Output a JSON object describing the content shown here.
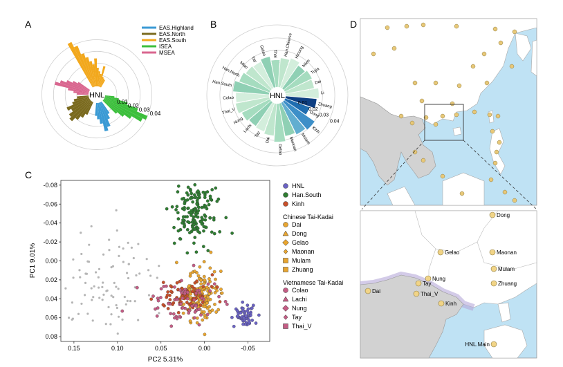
{
  "panels": {
    "a": "A",
    "b": "B",
    "c": "C",
    "d": "D"
  },
  "colors": {
    "EAS.Highland": "#3a9ad4",
    "EAS.North": "#7a6a1e",
    "EAS.South": "#f2a81d",
    "ISEA": "#3cbf3c",
    "MSEA": "#d9668f",
    "HNL": "#6b63c4",
    "Han.South": "#2f7d32",
    "Kinh": "#c8502a",
    "Chinese": "#e8a530",
    "Vietnamese": "#c45d85",
    "ref": "#b5b5b5",
    "sea": "#bfe2f4",
    "land": "#ffffff",
    "mainland_gray": "#d2d2d2"
  },
  "chart_data": [
    {
      "type": "bar",
      "panel": "A",
      "subtype": "radial",
      "center_label": "HNL",
      "radial_ticks": [
        "0.01",
        "0.02",
        "0.03",
        "0.04"
      ],
      "legend": [
        "EAS.Highland",
        "EAS.North",
        "EAS.South",
        "ISEA",
        "MSEA"
      ],
      "rmax": 0.045,
      "series": [
        {
          "name": "EAS.South",
          "values": [
            0.043,
            0.038,
            0.03,
            0.026,
            0.022,
            0.019,
            0.024,
            0.016,
            0.013,
            0.011,
            0.018,
            0.009,
            0.008,
            0.007
          ]
        },
        {
          "name": "ISEA",
          "values": [
            0.008,
            0.012,
            0.02,
            0.03,
            0.04,
            0.037,
            0.028,
            0.022,
            0.016
          ]
        },
        {
          "name": "EAS.Highland",
          "values": [
            0.012,
            0.016,
            0.022,
            0.025,
            0.018,
            0.014,
            0.011
          ]
        },
        {
          "name": "EAS.North",
          "values": [
            0.012,
            0.016,
            0.02,
            0.024,
            0.022,
            0.018,
            0.021,
            0.015,
            0.013,
            0.01
          ]
        },
        {
          "name": "MSEA",
          "values": [
            0.01,
            0.013,
            0.018,
            0.03,
            0.026,
            0.021,
            0.016,
            0.012
          ]
        }
      ]
    },
    {
      "type": "bar",
      "panel": "B",
      "subtype": "radial",
      "center_label": "HNL",
      "radial_ticks": [
        "0.01",
        "0.02",
        "0.03",
        "0.04"
      ],
      "rmax": 0.045,
      "categories": [
        "Zhuang",
        "Dong",
        "Kinh",
        "Mulam",
        "Maonan",
        "Gelao",
        "Dai",
        "Tay",
        "Lachi",
        "Nung",
        "Thai_V",
        "Colao",
        "Han.South",
        "Han.North",
        "Miao",
        "Tay",
        "Gelao",
        "Thai",
        "Han.Chinese",
        "Hmong",
        "Mien",
        "Tujia",
        "Dai",
        "Li"
      ],
      "values": [
        0.031,
        0.026,
        0.037,
        0.035,
        0.033,
        0.038,
        0.032,
        0.03,
        0.029,
        0.031,
        0.034,
        0.033,
        0.036,
        0.032,
        0.03,
        0.029,
        0.031,
        0.027,
        0.029,
        0.031,
        0.028,
        0.03,
        0.029,
        0.033
      ]
    },
    {
      "type": "scatter",
      "panel": "C",
      "xlabel": "PC2  5.31%",
      "ylabel": "PC1  9.01%",
      "xticks": [
        "0.15",
        "0.10",
        "0.05",
        "0.00",
        "-0.05"
      ],
      "yticks": [
        "-0.08",
        "-0.06",
        "-0.04",
        "-0.02",
        "0.00",
        "0.02",
        "0.04",
        "0.06",
        "0.08"
      ],
      "xlim": [
        0.165,
        -0.075
      ],
      "ylim": [
        -0.085,
        0.085
      ],
      "legend_groups": [
        {
          "title": "",
          "items": [
            {
              "name": "HNL",
              "marker": "circle",
              "color": "#6b63c4"
            },
            {
              "name": "Han.South",
              "marker": "circle",
              "color": "#2f7d32"
            },
            {
              "name": "Kinh",
              "marker": "circle",
              "color": "#c8502a"
            }
          ]
        },
        {
          "title": "Chinese Tai-Kadai",
          "items": [
            {
              "name": "Dai",
              "marker": "circle",
              "color": "#e8a530"
            },
            {
              "name": "Dong",
              "marker": "triangle",
              "color": "#e8a530"
            },
            {
              "name": "Gelao",
              "marker": "diamond",
              "color": "#e8a530"
            },
            {
              "name": "Maonan",
              "marker": "diamond-small",
              "color": "#e8a530"
            },
            {
              "name": "Mulam",
              "marker": "square",
              "color": "#e8a530"
            },
            {
              "name": "Zhuang",
              "marker": "square-open",
              "color": "#e8a530"
            }
          ]
        },
        {
          "title": "Vietnamese Tai-Kadai",
          "items": [
            {
              "name": "Colao",
              "marker": "circle",
              "color": "#c45d85"
            },
            {
              "name": "Lachi",
              "marker": "triangle",
              "color": "#c45d85"
            },
            {
              "name": "Nung",
              "marker": "diamond",
              "color": "#c45d85"
            },
            {
              "name": "Tay",
              "marker": "diamond-small",
              "color": "#c45d85"
            },
            {
              "name": "Thai_V",
              "marker": "square",
              "color": "#c45d85"
            }
          ]
        }
      ],
      "clusters": [
        {
          "name": "reference",
          "color": "#b5b5b5",
          "cx": 0.11,
          "cy": 0.02,
          "sx": 0.028,
          "sy": 0.028,
          "n": 90
        },
        {
          "name": "Han.South",
          "color": "#2f7d32",
          "cx": 0.01,
          "cy": -0.05,
          "sx": 0.012,
          "sy": 0.018,
          "n": 160
        },
        {
          "name": "Chinese Tai-Kadai",
          "color": "#e8a530",
          "cx": 0.005,
          "cy": 0.035,
          "sx": 0.012,
          "sy": 0.013,
          "n": 150
        },
        {
          "name": "Kinh",
          "color": "#c8502a",
          "cx": 0.025,
          "cy": 0.035,
          "sx": 0.015,
          "sy": 0.008,
          "n": 70
        },
        {
          "name": "Vietnamese Tai-Kadai",
          "color": "#c45d85",
          "cx": 0.025,
          "cy": 0.045,
          "sx": 0.022,
          "sy": 0.01,
          "n": 70
        },
        {
          "name": "HNL",
          "color": "#6b63c4",
          "cx": -0.048,
          "cy": 0.057,
          "sx": 0.007,
          "sy": 0.006,
          "n": 55
        }
      ]
    }
  ],
  "map_inset_labels": [
    {
      "text": "Dong",
      "x": 718,
      "y": 314
    },
    {
      "text": "Gelao",
      "x": 643,
      "y": 368
    },
    {
      "text": "Maonan",
      "x": 718,
      "y": 368
    },
    {
      "text": "Mulam",
      "x": 720,
      "y": 392
    },
    {
      "text": "Nung",
      "x": 625,
      "y": 406
    },
    {
      "text": "Zhuang",
      "x": 720,
      "y": 413
    },
    {
      "text": "Tay",
      "x": 611,
      "y": 413
    },
    {
      "text": "Dai",
      "x": 538,
      "y": 424
    },
    {
      "text": "Thai_V",
      "x": 608,
      "y": 428
    },
    {
      "text": "Kinh",
      "x": 644,
      "y": 442
    },
    {
      "text": "HNL.Main",
      "x": 720,
      "y": 501
    }
  ]
}
